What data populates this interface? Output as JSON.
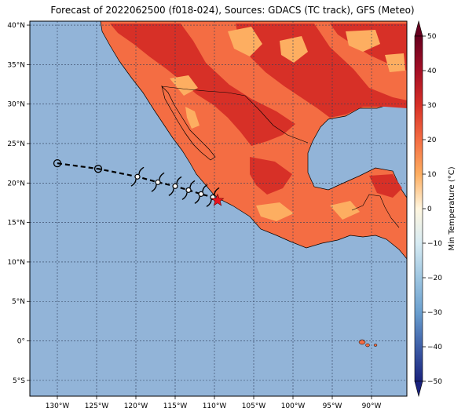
{
  "title": "Forecast of 2022062500 (f018-024), Sources: GDACS (TC track), GFS (Meteo)",
  "map": {
    "lon_range": [
      -133.5,
      -85.5
    ],
    "lat_range": [
      -7,
      40.5
    ],
    "lon_ticks": [
      {
        "lon": -130,
        "label": "130°W"
      },
      {
        "lon": -125,
        "label": "125°W"
      },
      {
        "lon": -120,
        "label": "120°W"
      },
      {
        "lon": -115,
        "label": "115°W"
      },
      {
        "lon": -110,
        "label": "110°W"
      },
      {
        "lon": -105,
        "label": "105°W"
      },
      {
        "lon": -100,
        "label": "100°W"
      },
      {
        "lon": -95,
        "label": "95°W"
      },
      {
        "lon": -90,
        "label": "90°W"
      }
    ],
    "lat_ticks": [
      {
        "lat": 40,
        "label": "40°N"
      },
      {
        "lat": 35,
        "label": "35°N"
      },
      {
        "lat": 30,
        "label": "30°N"
      },
      {
        "lat": 25,
        "label": "25°N"
      },
      {
        "lat": 20,
        "label": "20°N"
      },
      {
        "lat": 15,
        "label": "15°N"
      },
      {
        "lat": 10,
        "label": "10°N"
      },
      {
        "lat": 5,
        "label": "5°N"
      },
      {
        "lat": 0,
        "label": "0°"
      },
      {
        "lat": -5,
        "label": "5°S"
      }
    ],
    "ocean_color": "#92b4d8"
  },
  "colorbar": {
    "label": "Min Temperature (°C)",
    "ticks": [
      "50",
      "40",
      "30",
      "20",
      "10",
      "0",
      "−10",
      "−20",
      "−30",
      "−40",
      "−50"
    ],
    "colors": [
      "#67001f",
      "#b2182b",
      "#d6604d",
      "#f4a582",
      "#fdf0d8",
      "#e8f3f8",
      "#b6d6e8",
      "#8db6d8",
      "#5d8fc4",
      "#3b5aa6",
      "#1e2f8c"
    ]
  },
  "track": {
    "past": [
      {
        "lon": -130,
        "lat": 22.5
      },
      {
        "lon": -124.8,
        "lat": 21.8
      }
    ],
    "forecast": [
      {
        "lon": -119.8,
        "lat": 20.8
      },
      {
        "lon": -117.2,
        "lat": 20.1
      },
      {
        "lon": -115.0,
        "lat": 19.6
      },
      {
        "lon": -113.3,
        "lat": 19.1
      },
      {
        "lon": -111.7,
        "lat": 18.6
      },
      {
        "lon": -110.2,
        "lat": 18.2
      }
    ],
    "current": {
      "lon": -109.6,
      "lat": 17.8
    }
  }
}
